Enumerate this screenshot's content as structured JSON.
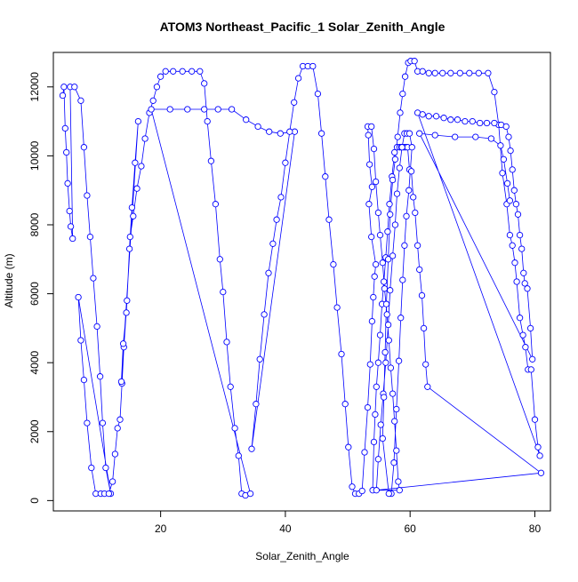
{
  "chart_data": {
    "type": "line",
    "title": "ATOM3 Northeast_Pacific_1 Solar_Zenith_Angle",
    "xlabel": "Solar_Zenith_Angle",
    "ylabel": "Altitude (m)",
    "xlim": [
      2.8,
      82.5
    ],
    "ylim": [
      -300,
      13000
    ],
    "x_ticks": [
      20,
      40,
      60,
      80
    ],
    "y_ticks": [
      0,
      2000,
      4000,
      6000,
      8000,
      10000,
      12000
    ],
    "grid": false,
    "legend": "none",
    "markers": "open-circle",
    "series": [
      {
        "color": "#0000ff",
        "points": [
          [
            4.3,
            11750
          ],
          [
            4.5,
            12000
          ],
          [
            4.7,
            10800
          ],
          [
            4.9,
            10100
          ],
          [
            5.1,
            9200
          ],
          [
            5.4,
            8400
          ],
          [
            5.6,
            7950
          ],
          [
            5.9,
            7600
          ],
          [
            5.5,
            12000
          ],
          [
            6.2,
            12000
          ],
          [
            7.2,
            11600
          ],
          [
            7.7,
            10250
          ],
          [
            8.2,
            8850
          ],
          [
            8.7,
            7650
          ],
          [
            9.2,
            6450
          ],
          [
            9.8,
            5050
          ],
          [
            10.3,
            3600
          ],
          [
            10.7,
            2250
          ],
          [
            11.2,
            950
          ],
          [
            12.0,
            200
          ],
          [
            6.8,
            5900
          ],
          [
            7.2,
            4650
          ],
          [
            7.7,
            3500
          ],
          [
            8.2,
            2250
          ],
          [
            8.9,
            950
          ],
          [
            9.6,
            200
          ],
          [
            10.4,
            200
          ],
          [
            11.0,
            200
          ],
          [
            11.7,
            200
          ],
          [
            12.3,
            550
          ],
          [
            12.7,
            1350
          ],
          [
            13.1,
            2100
          ],
          [
            13.5,
            2350
          ],
          [
            13.8,
            3400
          ],
          [
            14.1,
            4450
          ],
          [
            14.6,
            5800
          ],
          [
            15.0,
            7300
          ],
          [
            15.4,
            8500
          ],
          [
            15.9,
            9800
          ],
          [
            16.4,
            11000
          ],
          [
            13.7,
            3450
          ],
          [
            14.0,
            4550
          ],
          [
            14.5,
            5450
          ],
          [
            15.1,
            7650
          ],
          [
            15.6,
            8250
          ],
          [
            16.2,
            9050
          ],
          [
            16.9,
            9700
          ],
          [
            17.5,
            10500
          ],
          [
            18.2,
            11250
          ],
          [
            18.8,
            11600
          ],
          [
            19.4,
            12000
          ],
          [
            20.0,
            12300
          ],
          [
            20.8,
            12450
          ],
          [
            22.0,
            12450
          ],
          [
            23.5,
            12450
          ],
          [
            25.0,
            12450
          ],
          [
            26.3,
            12450
          ],
          [
            27.0,
            12100
          ],
          [
            27.5,
            11000
          ],
          [
            28.1,
            9850
          ],
          [
            28.8,
            8600
          ],
          [
            29.5,
            7000
          ],
          [
            30.0,
            6050
          ],
          [
            30.6,
            4600
          ],
          [
            31.2,
            3300
          ],
          [
            31.9,
            2100
          ],
          [
            32.5,
            1300
          ],
          [
            33.0,
            200
          ],
          [
            33.6,
            150
          ],
          [
            34.4,
            200
          ],
          [
            18.5,
            11350
          ],
          [
            21.5,
            11350
          ],
          [
            24.3,
            11350
          ],
          [
            27.0,
            11350
          ],
          [
            29.2,
            11350
          ],
          [
            31.4,
            11350
          ],
          [
            33.7,
            11050
          ],
          [
            35.6,
            10850
          ],
          [
            37.4,
            10700
          ],
          [
            39.2,
            10650
          ],
          [
            41.5,
            10700
          ],
          [
            34.6,
            1500
          ],
          [
            35.3,
            2800
          ],
          [
            35.9,
            4100
          ],
          [
            36.6,
            5400
          ],
          [
            37.3,
            6600
          ],
          [
            38.0,
            7450
          ],
          [
            38.6,
            8150
          ],
          [
            39.3,
            8800
          ],
          [
            40.0,
            9800
          ],
          [
            40.7,
            10700
          ],
          [
            41.4,
            11550
          ],
          [
            42.1,
            12250
          ],
          [
            42.8,
            12600
          ],
          [
            43.6,
            12600
          ],
          [
            44.4,
            12600
          ],
          [
            45.2,
            11800
          ],
          [
            45.8,
            10650
          ],
          [
            46.4,
            9400
          ],
          [
            47.0,
            8150
          ],
          [
            47.7,
            6850
          ],
          [
            48.3,
            5600
          ],
          [
            49.0,
            4250
          ],
          [
            49.6,
            2800
          ],
          [
            50.1,
            1550
          ],
          [
            50.7,
            400
          ],
          [
            51.2,
            200
          ],
          [
            51.8,
            200
          ],
          [
            52.3,
            280
          ],
          [
            52.7,
            1400
          ],
          [
            53.2,
            2700
          ],
          [
            53.6,
            3950
          ],
          [
            53.9,
            5200
          ],
          [
            54.1,
            5900
          ],
          [
            54.3,
            6500
          ],
          [
            54.5,
            6850
          ],
          [
            53.8,
            7650
          ],
          [
            53.4,
            8600
          ],
          [
            53.9,
            9100
          ],
          [
            53.5,
            9750
          ],
          [
            53.3,
            10600
          ],
          [
            53.2,
            10850
          ],
          [
            53.8,
            10850
          ],
          [
            54.2,
            10200
          ],
          [
            54.5,
            9250
          ],
          [
            54.9,
            8350
          ],
          [
            55.2,
            7700
          ],
          [
            55.6,
            6900
          ],
          [
            55.9,
            6150
          ],
          [
            56.3,
            5400
          ],
          [
            56.6,
            4650
          ],
          [
            56.9,
            3850
          ],
          [
            57.2,
            3100
          ],
          [
            57.5,
            2300
          ],
          [
            57.8,
            1450
          ],
          [
            58.1,
            550
          ],
          [
            58.3,
            300
          ],
          [
            54.0,
            300
          ],
          [
            54.2,
            1700
          ],
          [
            54.4,
            2500
          ],
          [
            54.6,
            3300
          ],
          [
            54.9,
            4000
          ],
          [
            55.2,
            4800
          ],
          [
            55.5,
            5700
          ],
          [
            55.8,
            6350
          ],
          [
            56.1,
            7050
          ],
          [
            56.4,
            7800
          ],
          [
            56.7,
            8600
          ],
          [
            57.1,
            9400
          ],
          [
            57.5,
            10100
          ],
          [
            57.9,
            10250
          ],
          [
            58.3,
            10250
          ],
          [
            58.6,
            10250
          ],
          [
            59.0,
            10250
          ],
          [
            59.3,
            10250
          ],
          [
            59.6,
            10250
          ],
          [
            59.9,
            9600
          ],
          [
            60.2,
            9550
          ],
          [
            60.5,
            8800
          ],
          [
            60.8,
            8350
          ],
          [
            61.2,
            7400
          ],
          [
            61.5,
            6700
          ],
          [
            61.9,
            5950
          ],
          [
            62.2,
            5000
          ],
          [
            62.5,
            3950
          ],
          [
            62.8,
            3300
          ],
          [
            81.0,
            800
          ],
          [
            54.6,
            300
          ],
          [
            54.9,
            1200
          ],
          [
            55.3,
            2200
          ],
          [
            55.7,
            3100
          ],
          [
            56.1,
            4000
          ],
          [
            56.5,
            5100
          ],
          [
            56.8,
            6100
          ],
          [
            57.2,
            7100
          ],
          [
            57.6,
            8000
          ],
          [
            57.9,
            8900
          ],
          [
            58.3,
            9650
          ],
          [
            58.7,
            10250
          ],
          [
            59.1,
            10650
          ],
          [
            59.5,
            10650
          ],
          [
            59.9,
            10650
          ],
          [
            60.3,
            10250
          ],
          [
            59.8,
            9000
          ],
          [
            59.4,
            8250
          ],
          [
            59.1,
            7400
          ],
          [
            58.8,
            6400
          ],
          [
            58.5,
            5300
          ],
          [
            58.2,
            4050
          ],
          [
            57.8,
            2650
          ],
          [
            57.4,
            1100
          ],
          [
            57.0,
            200
          ],
          [
            56.6,
            200
          ],
          [
            55.6,
            1800
          ],
          [
            55.8,
            3000
          ],
          [
            56.0,
            4300
          ],
          [
            56.2,
            5700
          ],
          [
            56.5,
            7000
          ],
          [
            56.8,
            8300
          ],
          [
            57.2,
            9300
          ],
          [
            57.6,
            9900
          ],
          [
            58.0,
            10550
          ],
          [
            58.4,
            11250
          ],
          [
            58.8,
            11800
          ],
          [
            59.2,
            12300
          ],
          [
            59.7,
            12700
          ],
          [
            60.1,
            12750
          ],
          [
            60.7,
            12750
          ],
          [
            61.2,
            12450
          ],
          [
            62.0,
            12450
          ],
          [
            63.0,
            12400
          ],
          [
            64.0,
            12400
          ],
          [
            65.2,
            12400
          ],
          [
            66.5,
            12400
          ],
          [
            68.0,
            12400
          ],
          [
            69.5,
            12400
          ],
          [
            71.0,
            12400
          ],
          [
            72.5,
            12400
          ],
          [
            73.5,
            11850
          ],
          [
            74.2,
            10900
          ],
          [
            74.8,
            9500
          ],
          [
            75.5,
            8600
          ],
          [
            76.0,
            7700
          ],
          [
            76.4,
            7400
          ],
          [
            76.8,
            6900
          ],
          [
            77.1,
            6350
          ],
          [
            77.6,
            5300
          ],
          [
            78.1,
            4800
          ],
          [
            78.5,
            4450
          ],
          [
            78.9,
            3800
          ],
          [
            79.4,
            3800
          ],
          [
            80.0,
            2350
          ],
          [
            80.5,
            1550
          ],
          [
            80.8,
            1300
          ],
          [
            61.2,
            11250
          ],
          [
            62.0,
            11200
          ],
          [
            63.0,
            11150
          ],
          [
            64.2,
            11150
          ],
          [
            65.4,
            11100
          ],
          [
            66.5,
            11050
          ],
          [
            67.6,
            11050
          ],
          [
            68.8,
            11000
          ],
          [
            70.0,
            11000
          ],
          [
            71.2,
            10950
          ],
          [
            72.3,
            10950
          ],
          [
            73.5,
            10950
          ],
          [
            74.6,
            10900
          ],
          [
            75.4,
            10850
          ],
          [
            75.8,
            10550
          ],
          [
            76.1,
            10150
          ],
          [
            76.4,
            9600
          ],
          [
            76.7,
            9000
          ],
          [
            77.0,
            8600
          ],
          [
            77.3,
            8300
          ],
          [
            77.6,
            7700
          ],
          [
            77.9,
            7300
          ],
          [
            78.2,
            6600
          ],
          [
            78.4,
            6300
          ],
          [
            78.8,
            6150
          ],
          [
            79.3,
            5000
          ],
          [
            79.6,
            4100
          ],
          [
            61.5,
            10650
          ],
          [
            64.0,
            10600
          ],
          [
            67.2,
            10550
          ],
          [
            70.5,
            10550
          ],
          [
            73.0,
            10500
          ],
          [
            74.5,
            10300
          ],
          [
            75.0,
            9900
          ],
          [
            75.6,
            9200
          ],
          [
            76.0,
            8700
          ]
        ]
      }
    ]
  }
}
